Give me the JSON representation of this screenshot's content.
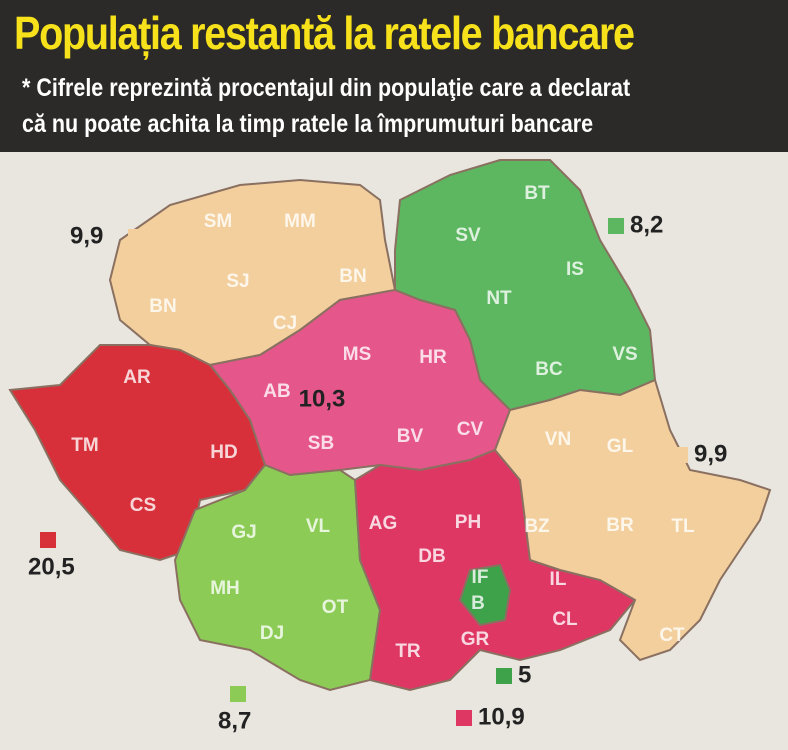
{
  "header": {
    "title": "Populația restantă la ratele bancare",
    "subtitle_lines": [
      "* Cifrele reprezintă procentajul din populaţie care a declarat",
      "că nu poate achita la timp ratele la împrumuturi bancare"
    ]
  },
  "regions": [
    {
      "color": "#f2cf9d",
      "value": {
        "value": 9.9,
        "label": "9,9"
      },
      "counties": [
        "SM",
        "MM",
        "SJ",
        "BN",
        "BN",
        "CJ"
      ]
    },
    {
      "color": "#5cb760",
      "value": {
        "value": 8.2,
        "label": "8,2"
      },
      "counties": [
        "BT",
        "SV",
        "IS",
        "NT",
        "BC",
        "VS"
      ]
    },
    {
      "color": "#e5578a",
      "value": {
        "value": 10.3,
        "label": "10,3"
      },
      "counties": [
        "MS",
        "HR",
        "AB",
        "SB",
        "BV",
        "CV"
      ]
    },
    {
      "color": "#d8303a",
      "value": {
        "value": 20.5,
        "label": "20,5"
      },
      "counties": [
        "AR",
        "TM",
        "HD",
        "CS"
      ]
    },
    {
      "color": "#8ccc56",
      "value": {
        "value": 8.7,
        "label": "8,7"
      },
      "counties": [
        "GJ",
        "VL",
        "MH",
        "DJ",
        "OT"
      ]
    },
    {
      "color": "#df3764",
      "value": {
        "value": 10.9,
        "label": "10,9"
      },
      "counties": [
        "AG",
        "PH",
        "DB",
        "TR",
        "GR",
        "IL",
        "CL"
      ]
    },
    {
      "color": "#3ea24a",
      "value": 5,
      "counties": [
        "IF",
        "B"
      ]
    },
    {
      "color": "#f2cf9d",
      "value": {
        "value": 9.9,
        "label": "9,9"
      },
      "counties": [
        "VN",
        "GL",
        "BZ",
        "BR",
        "TL",
        "CT"
      ]
    }
  ]
}
